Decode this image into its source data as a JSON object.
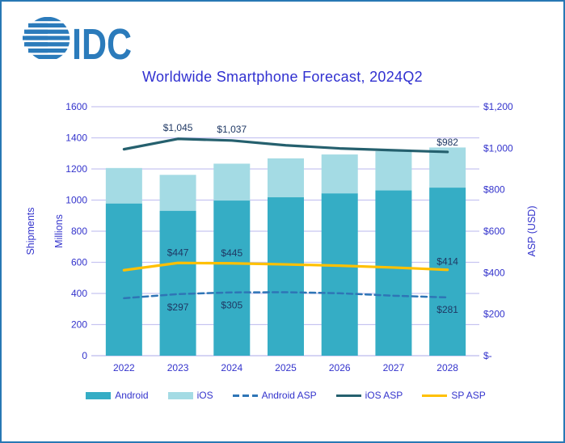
{
  "logo": {
    "text": "IDC",
    "color": "#2B7BBB"
  },
  "chart_data": {
    "type": "bar",
    "subtype": "stacked-bars-with-lines-combo",
    "title": "Worldwide Smartphone Forecast, 2024Q2",
    "categories": [
      "2022",
      "2023",
      "2024",
      "2025",
      "2026",
      "2027",
      "2028"
    ],
    "left_axis": {
      "label_outer": "Shipments",
      "label_inner": "Millions",
      "range": [
        0,
        1600
      ],
      "tick_step": 200,
      "tick_labels": [
        "0",
        "200",
        "400",
        "600",
        "800",
        "1000",
        "1200",
        "1400",
        "1600"
      ]
    },
    "right_axis": {
      "label": "ASP (USD)",
      "range": [
        0,
        1200
      ],
      "tick_step": 200,
      "tick_labels": [
        "$-",
        "$200",
        "$400",
        "$600",
        "$800",
        "$1,000",
        "$1,200"
      ]
    },
    "bar_series": [
      {
        "name": "Android",
        "axis": "left",
        "color": "#35ADC5",
        "values": [
          978,
          931,
          997,
          1018,
          1043,
          1062,
          1080
        ]
      },
      {
        "name": "iOS",
        "axis": "left",
        "color": "#A4DBE4",
        "values": [
          228,
          231,
          237,
          250,
          250,
          252,
          258
        ]
      }
    ],
    "line_series": [
      {
        "name": "Android ASP",
        "axis": "right",
        "color": "#2E75B6",
        "dash": "7,4.5",
        "width": 2.5,
        "values": [
          277,
          297,
          305,
          306,
          301,
          289,
          281
        ]
      },
      {
        "name": "iOS ASP",
        "axis": "right",
        "color": "#25606E",
        "dash": "",
        "width": 3.2,
        "values": [
          995,
          1045,
          1037,
          1014,
          999,
          990,
          982
        ]
      },
      {
        "name": "SP ASP",
        "axis": "right",
        "color": "#FFC000",
        "dash": "",
        "width": 3.2,
        "values": [
          412,
          447,
          445,
          440,
          434,
          425,
          414
        ]
      }
    ],
    "point_labels": [
      {
        "series": "iOS ASP",
        "year": "2023",
        "text": "$1,045",
        "dy": -10
      },
      {
        "series": "iOS ASP",
        "year": "2024",
        "text": "$1,037",
        "dy": -10
      },
      {
        "series": "iOS ASP",
        "year": "2028",
        "text": "$982",
        "dy": -8
      },
      {
        "series": "SP ASP",
        "year": "2023",
        "text": "$447",
        "dy": -9
      },
      {
        "series": "SP ASP",
        "year": "2024",
        "text": "$445",
        "dy": -9
      },
      {
        "series": "SP ASP",
        "year": "2028",
        "text": "$414",
        "dy": -6
      },
      {
        "series": "Android ASP",
        "year": "2023",
        "text": "$297",
        "dy": 20
      },
      {
        "series": "Android ASP",
        "year": "2024",
        "text": "$305",
        "dy": 20
      },
      {
        "series": "Android ASP",
        "year": "2028",
        "text": "$281",
        "dy": 19
      }
    ],
    "grid": true,
    "legend_position": "bottom",
    "legend": [
      {
        "label": "Android",
        "type": "bar",
        "color": "#35ADC5"
      },
      {
        "label": "iOS",
        "type": "bar",
        "color": "#A4DBE4"
      },
      {
        "label": "Android ASP",
        "type": "dashed-line",
        "color": "#2E75B6"
      },
      {
        "label": "iOS ASP",
        "type": "line",
        "color": "#25606E"
      },
      {
        "label": "SP ASP",
        "type": "line",
        "color": "#FFC000"
      }
    ]
  },
  "colors": {
    "gridline": "#C7C5F1",
    "tick_text": "#3333CC",
    "title_text": "#3030D0",
    "data_label": "#1F3864",
    "frame_border": "#2878B4",
    "logo_blue": "#2B7BBB"
  }
}
